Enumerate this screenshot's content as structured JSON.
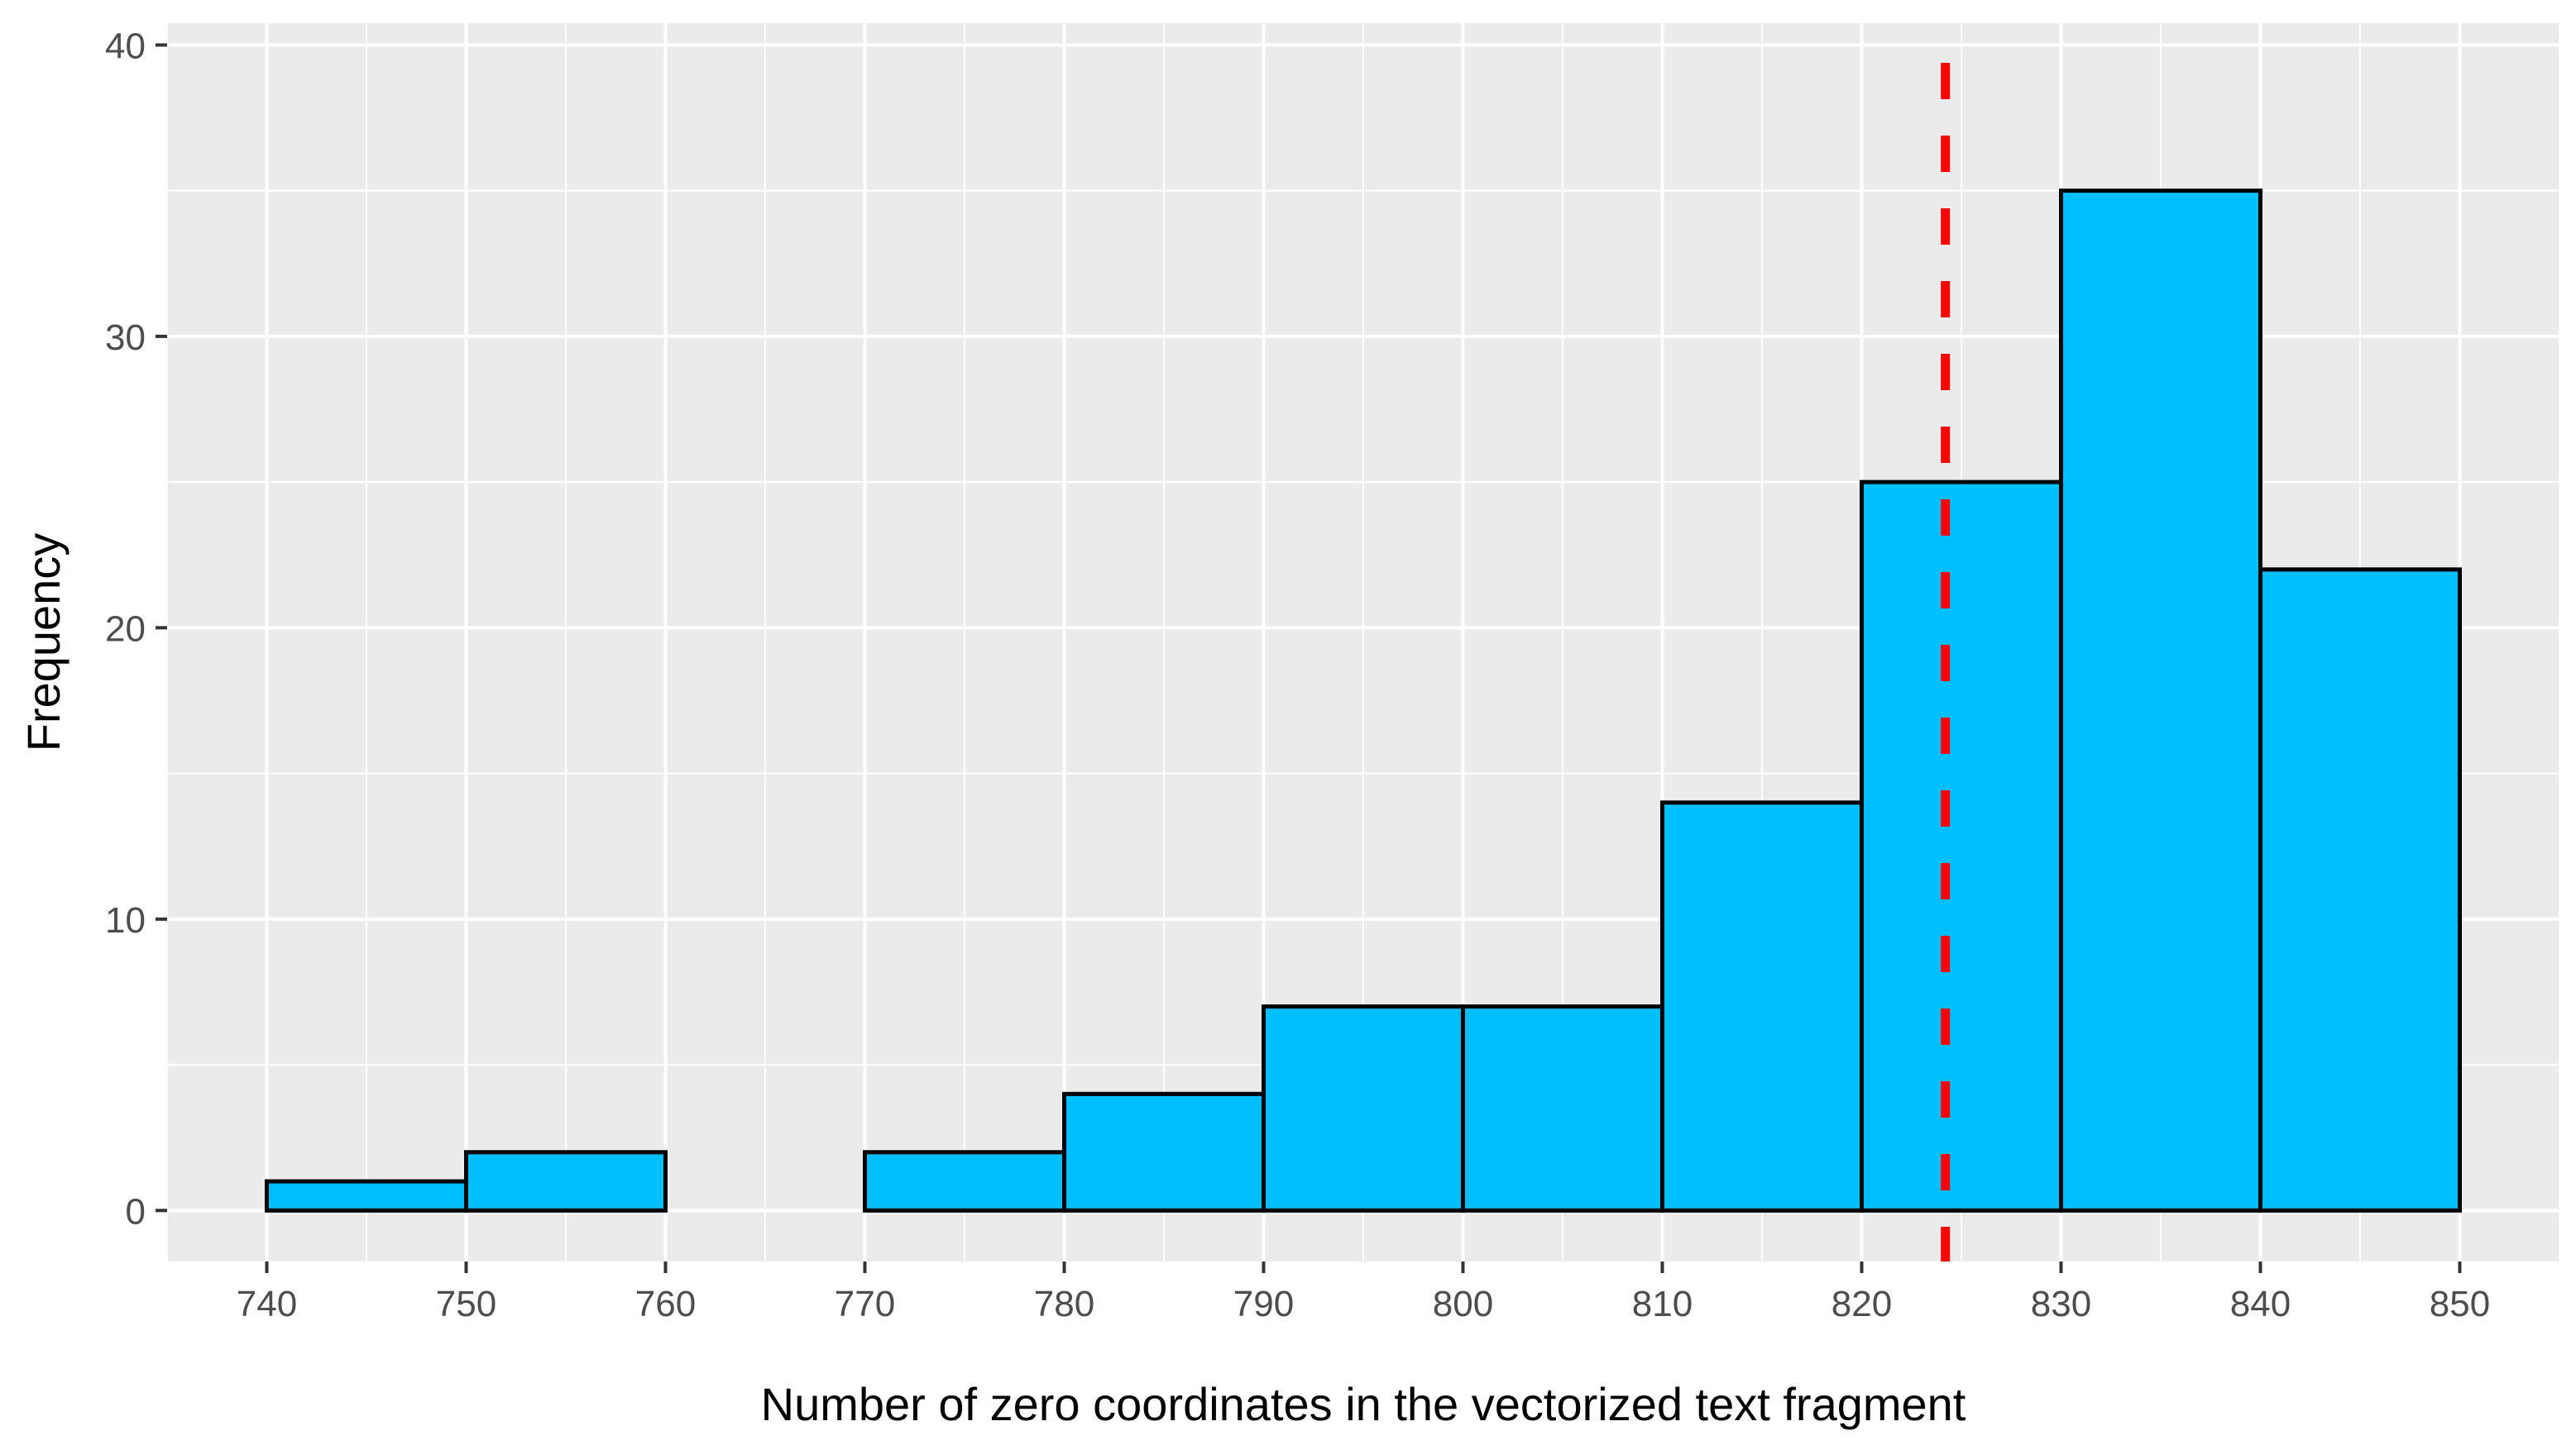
{
  "chart_data": {
    "type": "bar",
    "subtype": "histogram",
    "xlabel": "Number of zero coordinates in the vectorized text fragment",
    "ylabel": "Frequency",
    "bins": [
      {
        "start": 740,
        "end": 750,
        "count": 1
      },
      {
        "start": 750,
        "end": 760,
        "count": 2
      },
      {
        "start": 760,
        "end": 770,
        "count": 0
      },
      {
        "start": 770,
        "end": 780,
        "count": 2
      },
      {
        "start": 780,
        "end": 790,
        "count": 4
      },
      {
        "start": 790,
        "end": 800,
        "count": 7
      },
      {
        "start": 800,
        "end": 810,
        "count": 7
      },
      {
        "start": 810,
        "end": 820,
        "count": 14
      },
      {
        "start": 820,
        "end": 830,
        "count": 25
      },
      {
        "start": 830,
        "end": 840,
        "count": 35
      },
      {
        "start": 840,
        "end": 850,
        "count": 22
      }
    ],
    "x_ticks": [
      "740",
      "750",
      "760",
      "770",
      "780",
      "790",
      "800",
      "810",
      "820",
      "830",
      "840",
      "850"
    ],
    "y_ticks": [
      "0",
      "10",
      "20",
      "30",
      "40"
    ],
    "xlim": [
      735,
      855
    ],
    "ylim": [
      -1.75,
      40.75
    ],
    "reference_line": {
      "x": 824.2,
      "style": "dashed",
      "color": "#ff0000"
    },
    "grid": true,
    "bar_fill": "#00bfff",
    "bar_stroke": "#000000",
    "panel_background": "#ebebeb",
    "grid_color": "#ffffff"
  }
}
